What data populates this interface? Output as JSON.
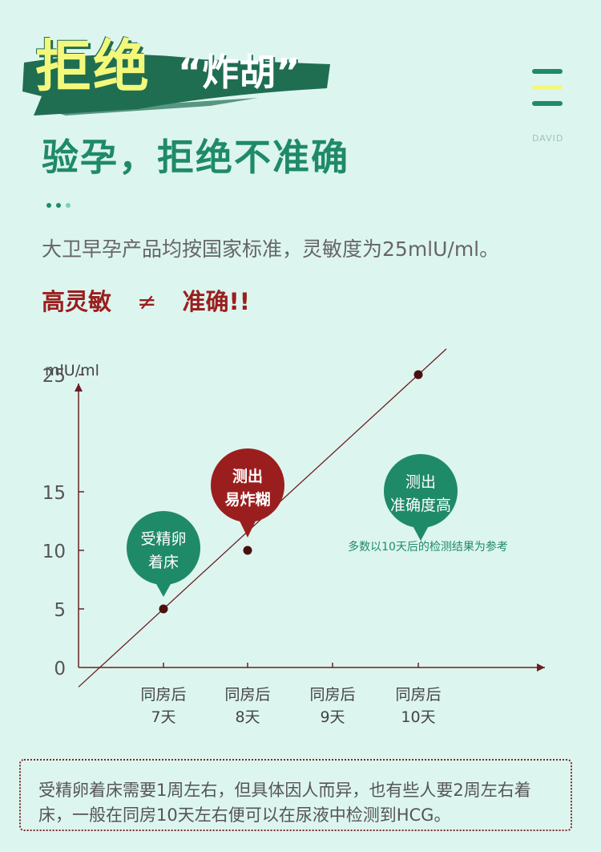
{
  "header": {
    "title_main": "拒绝",
    "title_quote": "“炸胡”",
    "subtitle": "验孕，拒绝不准确",
    "brand": "DAVID"
  },
  "colors": {
    "bg": "#ddf5ef",
    "green": "#1f8a68",
    "red": "#9b1e1e",
    "yellow": "#f4f87a"
  },
  "icons": {
    "menu": "menu-icon"
  },
  "intro": {
    "text": "大卫早孕产品均按国家标准，灵敏度为25mlU/ml。",
    "warn_left": "高灵敏",
    "neq": "≠",
    "warn_right": "准确!!"
  },
  "chart_data": {
    "type": "line",
    "ylabel": "mlU/ml",
    "yticks": [
      0,
      5,
      10,
      15,
      25
    ],
    "ylim": [
      0,
      28
    ],
    "categories": [
      "同房后\n7天",
      "同房后\n8天",
      "同房后\n9天",
      "同房后\n10天"
    ],
    "points": [
      {
        "x": "同房后\n7天",
        "y": 5
      },
      {
        "x": "同房后\n8天",
        "y": 10
      },
      {
        "x": "同房后\n10天",
        "y": 25
      }
    ],
    "callouts": [
      {
        "text": "受精卵\n着床",
        "at": "同房后\n7天",
        "color": "#1f8a68"
      },
      {
        "text": "测出\n易炸糊",
        "at": "同房后\n8天",
        "color": "#9b1e1e"
      },
      {
        "text": "测出\n准确度高",
        "at": "同房后\n10天",
        "color": "#1f8a68"
      }
    ],
    "annotation": "多数以10天后的检测结果为参考"
  },
  "footnote": "受精卵着床需要1周左右，但具体因人而异，也有些人要2周左右着床，一般在同房10天左右便可以在尿液中检测到HCG。"
}
